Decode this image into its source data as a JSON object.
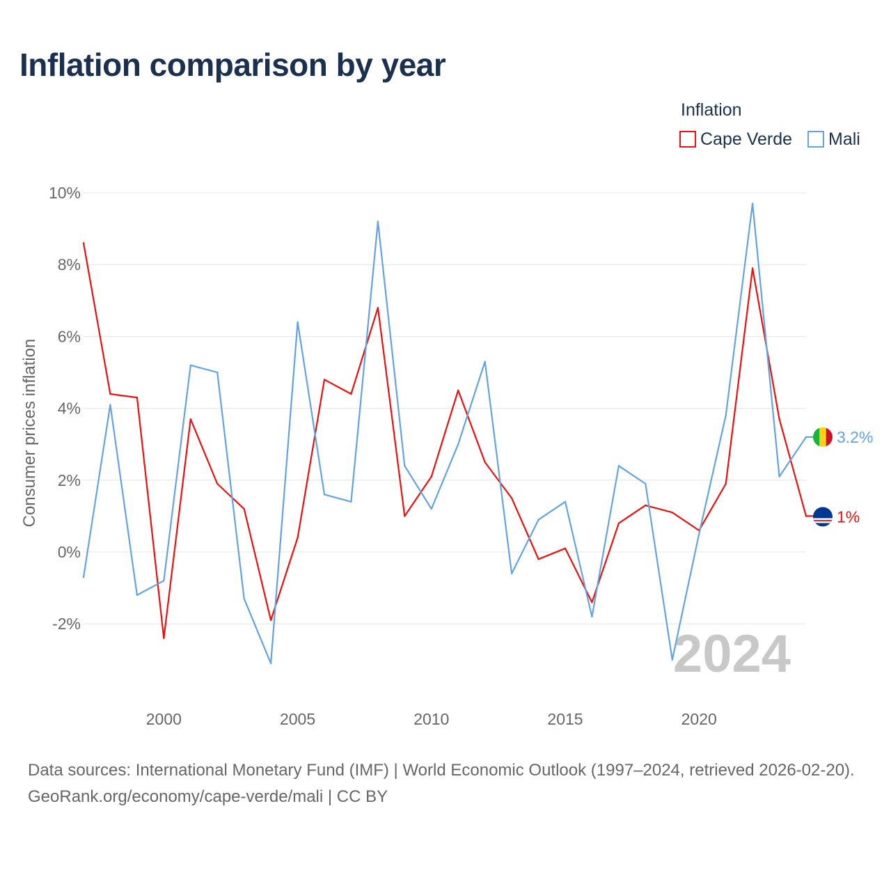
{
  "title": "Inflation comparison by year",
  "legend": {
    "title": "Inflation",
    "items": [
      {
        "label": "Cape Verde",
        "color": "#e8110f"
      },
      {
        "label": "Mali",
        "color": "#62a3e0"
      }
    ]
  },
  "chart_data": {
    "type": "line",
    "title": "Inflation comparison by year",
    "xlabel": "",
    "ylabel": "Consumer prices inflation",
    "xlim": [
      1997,
      2024
    ],
    "ylim": [
      -4,
      10
    ],
    "y_ticks": [
      -2,
      0,
      2,
      4,
      6,
      8,
      10
    ],
    "y_tick_labels": [
      "-2%",
      "0%",
      "2%",
      "4%",
      "6%",
      "8%",
      "10%"
    ],
    "x_ticks": [
      2000,
      2005,
      2010,
      2015,
      2020
    ],
    "x_tick_labels": [
      "2000",
      "2005",
      "2010",
      "2015",
      "2020"
    ],
    "grid": true,
    "legend_position": "top-right",
    "year_label": "2024",
    "x": [
      1997,
      1998,
      1999,
      2000,
      2001,
      2002,
      2003,
      2004,
      2005,
      2006,
      2007,
      2008,
      2009,
      2010,
      2011,
      2012,
      2013,
      2014,
      2015,
      2016,
      2017,
      2018,
      2019,
      2020,
      2021,
      2022,
      2023,
      2024
    ],
    "series": [
      {
        "name": "Cape Verde",
        "color": "#e8110f",
        "end_label": "1%",
        "flag": "cape-verde-flag-icon",
        "values": [
          8.6,
          4.4,
          4.3,
          -2.4,
          3.7,
          1.9,
          1.2,
          -1.9,
          0.4,
          4.8,
          4.4,
          6.8,
          1.0,
          2.1,
          4.5,
          2.5,
          1.5,
          -0.2,
          0.1,
          -1.4,
          0.8,
          1.3,
          1.1,
          0.6,
          1.9,
          7.9,
          3.7,
          1.0
        ]
      },
      {
        "name": "Mali",
        "color": "#62a3e0",
        "end_label": "3.2%",
        "flag": "mali-flag-icon",
        "values": [
          -0.7,
          4.1,
          -1.2,
          -0.8,
          5.2,
          5.0,
          -1.3,
          -3.1,
          6.4,
          1.6,
          1.4,
          9.2,
          2.4,
          1.2,
          3.0,
          5.3,
          -0.6,
          0.9,
          1.4,
          -1.8,
          2.4,
          1.9,
          -3.0,
          0.5,
          3.8,
          9.7,
          2.1,
          3.2
        ]
      }
    ]
  },
  "footer": {
    "line1": "Data sources: International Monetary Fund (IMF) | World Economic Outlook (1997–2024, retrieved 2026-02-20).",
    "line2": "GeoRank.org/economy/cape-verde/mali | CC BY"
  }
}
